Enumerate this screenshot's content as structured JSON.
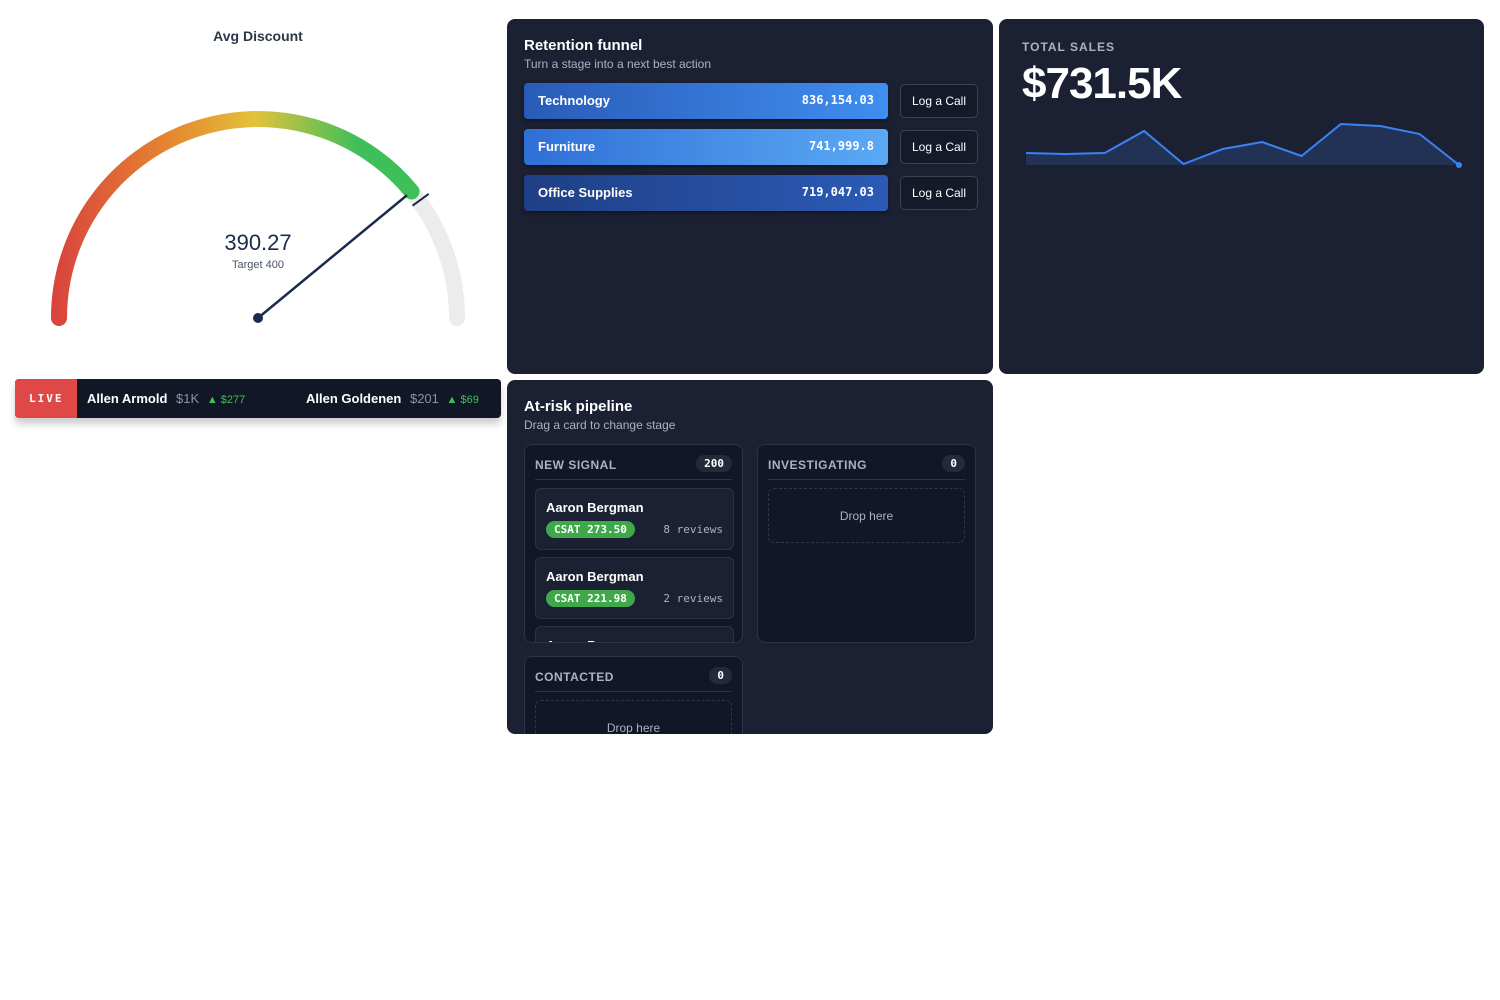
{
  "gauge": {
    "title": "Avg Discount",
    "value": 390.27,
    "target_label": "Target 400",
    "target": 400,
    "range": [
      0,
      500
    ]
  },
  "ticker": {
    "badge": "LIVE",
    "items": [
      {
        "name": "Allen Armold",
        "amount": "$1K",
        "change": "$277"
      },
      {
        "name": "Allen Goldenen",
        "amount": "$201",
        "change": "$69"
      }
    ]
  },
  "funnel": {
    "title": "Retention funnel",
    "subtitle": "Turn a stage into a next best action",
    "stages": [
      {
        "name": "Technology",
        "value": "836,154.03",
        "action": "Log a Call"
      },
      {
        "name": "Furniture",
        "value": "741,999.8",
        "action": "Log a Call"
      },
      {
        "name": "Office Supplies",
        "value": "719,047.03",
        "action": "Log a Call"
      }
    ]
  },
  "sales": {
    "label": "TOTAL SALES",
    "value": "$731.5K",
    "sparkline": {
      "values": [
        12,
        11,
        12,
        34,
        1,
        16,
        23,
        9,
        41,
        39,
        31,
        0
      ],
      "ylim": [
        0,
        45
      ],
      "color": "#3b82f6"
    }
  },
  "pipeline": {
    "title": "At-risk pipeline",
    "subtitle": "Drag a card to change stage",
    "columns": [
      {
        "name": "NEW SIGNAL",
        "count": "200",
        "cards": [
          {
            "name": "Aaron Bergman",
            "csat": "CSAT 273.50",
            "reviews": "8 reviews"
          },
          {
            "name": "Aaron Bergman",
            "csat": "CSAT 221.98",
            "reviews": "2 reviews"
          },
          {
            "name": "Aaron Bergman"
          }
        ]
      },
      {
        "name": "INVESTIGATING",
        "count": "0",
        "empty": "Drop here"
      },
      {
        "name": "CONTACTED",
        "count": "0",
        "empty": "Drop here"
      }
    ]
  }
}
